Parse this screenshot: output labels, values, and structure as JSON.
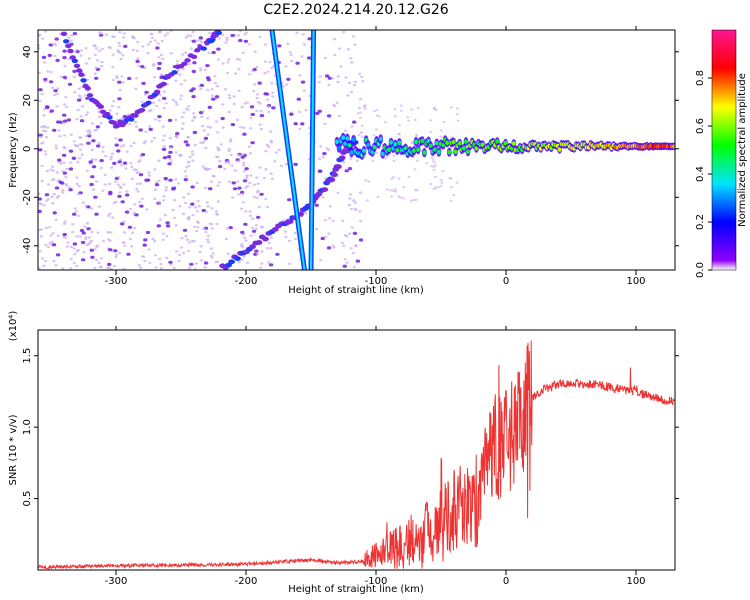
{
  "figure_title": "C2E2.2024.214.20.12.G26",
  "colors": {
    "snr_line": "#ee3333",
    "spectrogram_background": "#ffffff",
    "scatter_light": "#c9a8f0",
    "scatter_dark": "#7a2be0"
  },
  "chart_data": [
    {
      "type": "heatmap",
      "xlabel": "Height of straight line (km)",
      "ylabel": "Frequency (Hz)",
      "xlim": [
        -360,
        130
      ],
      "ylim": [
        -50,
        49
      ],
      "xticks": [
        -300,
        -200,
        -100,
        0,
        100
      ],
      "yticks": [
        -40,
        -20,
        0,
        20,
        40
      ],
      "colorbar": {
        "label": "Normalized spectral amplitude",
        "range": [
          0,
          1
        ],
        "ticks": [
          "0.0",
          "0.2",
          "0.4",
          "0.6",
          "0.8"
        ],
        "colormap": [
          "#ffffff",
          "#8e00ff",
          "#0000ff",
          "#00e5ff",
          "#00ff00",
          "#ffff00",
          "#ff0000",
          "#ff1493"
        ]
      },
      "features": [
        {
          "kind": "steady_signal",
          "x_range": [
            -130,
            130
          ],
          "frequency": 1,
          "amplitude": 0.75
        },
        {
          "kind": "upper_streak",
          "points": [
            [
              -180,
              49
            ],
            [
              -155,
              -50
            ]
          ]
        },
        {
          "kind": "lower_streak",
          "points": [
            [
              -148,
              49
            ],
            [
              -150,
              -50
            ]
          ]
        },
        {
          "kind": "curved_trace",
          "points": [
            [
              -340,
              47
            ],
            [
              -320,
              22
            ],
            [
              -300,
              9
            ],
            [
              -280,
              16
            ],
            [
              -260,
              30
            ],
            [
              -230,
              43
            ],
            [
              -220,
              49
            ]
          ]
        },
        {
          "kind": "descending_trace",
          "points": [
            [
              -218,
              -49
            ],
            [
              -195,
              -40
            ],
            [
              -170,
              -31
            ],
            [
              -150,
              -23
            ],
            [
              -135,
              -13
            ],
            [
              -125,
              -2
            ],
            [
              -115,
              4
            ]
          ]
        }
      ]
    },
    {
      "type": "line",
      "xlabel": "Height of straight line (km)",
      "ylabel": "SNR (10 * v/v)",
      "y_scale_label": "(x10⁴)",
      "xlim": [
        -360,
        130
      ],
      "ylim": [
        0,
        1.68
      ],
      "xticks": [
        -300,
        -200,
        -100,
        0,
        100
      ],
      "yticks": [
        0.5,
        1.0,
        1.5
      ],
      "ytick_labels": [
        "0.5",
        "1.0",
        "1.5"
      ],
      "series": [
        {
          "x": [
            -360,
            -300,
            -200,
            -170,
            -150,
            -130,
            -110,
            -100,
            -90,
            -80,
            -70,
            -60,
            -50,
            -40,
            -30,
            -25,
            -20,
            -15,
            -10,
            -5,
            0,
            5,
            10,
            15,
            20,
            30,
            40,
            50,
            60,
            70,
            80,
            90,
            100,
            110,
            120,
            130
          ],
          "y": [
            0.02,
            0.03,
            0.04,
            0.06,
            0.07,
            0.05,
            0.06,
            0.1,
            0.15,
            0.18,
            0.22,
            0.28,
            0.33,
            0.42,
            0.45,
            0.48,
            0.52,
            0.75,
            0.78,
            0.85,
            0.92,
            1.0,
            1.05,
            1.12,
            1.2,
            1.27,
            1.3,
            1.31,
            1.3,
            1.3,
            1.28,
            1.26,
            1.25,
            1.22,
            1.19,
            1.18
          ]
        }
      ]
    }
  ]
}
